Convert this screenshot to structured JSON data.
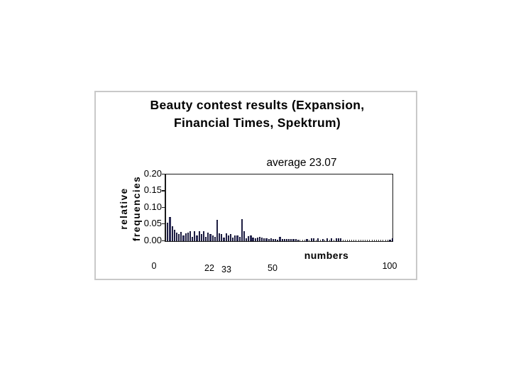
{
  "slide": {
    "title_lines": [
      "Beauty contest results (Expansion,",
      "Financial Times, Spektrum)"
    ]
  },
  "chart_data": {
    "type": "bar",
    "title": "Beauty contest results (Expansion, Financial Times, Spektrum)",
    "annotation": "average 23.07",
    "xlabel": "numbers",
    "ylabel": "relative frequencies",
    "ylabel_lines": [
      "relative",
      "frequencies"
    ],
    "x_range": [
      0,
      100
    ],
    "x_note": "chosen number; value index 0..100 equals the number guessed",
    "ylim": [
      0,
      0.2
    ],
    "grid": false,
    "legend": false,
    "bar_color": "#3f3f75",
    "y_ticks": [
      "0.20",
      "0.15",
      "0.10",
      "0.05",
      "0.00"
    ],
    "x_tick_labels": [
      "0",
      "22",
      "33",
      "50",
      "100"
    ],
    "x_tick_values": [
      0,
      22,
      33,
      50,
      100
    ],
    "values": [
      0.055,
      0.072,
      0.044,
      0.035,
      0.025,
      0.022,
      0.027,
      0.018,
      0.024,
      0.025,
      0.029,
      0.013,
      0.029,
      0.018,
      0.029,
      0.022,
      0.029,
      0.013,
      0.025,
      0.022,
      0.018,
      0.013,
      0.063,
      0.024,
      0.022,
      0.011,
      0.024,
      0.017,
      0.022,
      0.011,
      0.017,
      0.018,
      0.013,
      0.066,
      0.03,
      0.009,
      0.015,
      0.018,
      0.011,
      0.008,
      0.011,
      0.013,
      0.011,
      0.009,
      0.009,
      0.007,
      0.009,
      0.007,
      0.007,
      0.005,
      0.013,
      0.007,
      0.006,
      0.007,
      0.007,
      0.007,
      0.007,
      0.006,
      0.005,
      0,
      0,
      0,
      0.006,
      0,
      0.009,
      0.008,
      0,
      0.008,
      0,
      0.007,
      0,
      0.008,
      0,
      0.008,
      0,
      0.009,
      0.008,
      0.008,
      0,
      0,
      0,
      0,
      0,
      0,
      0,
      0,
      0,
      0,
      0,
      0,
      0,
      0,
      0,
      0,
      0,
      0,
      0,
      0,
      0,
      0.004,
      0.008
    ]
  },
  "colors": {
    "slide_border": "#c9c9c9",
    "axis": "#1a1a1a",
    "bar_fill": "#3f3f75",
    "bar_outline": "#10102e",
    "background": "#ffffff"
  }
}
